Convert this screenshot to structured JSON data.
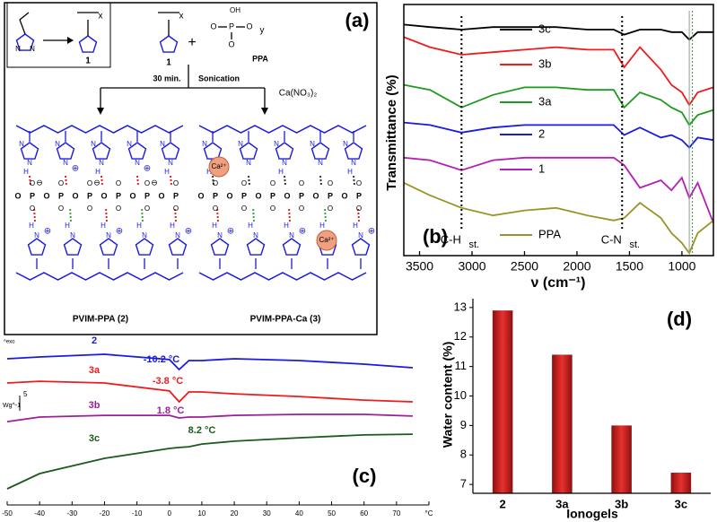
{
  "diagram": {
    "label": "(a)",
    "monomer_index": "1",
    "polymer_index": "1",
    "subscript_x": "x",
    "subscript_y": "y",
    "ppa": "PPA",
    "plus": "+",
    "step_time": "30 min.",
    "step_method": "Sonication",
    "reagent": "Ca(NO₃)₂",
    "product_2": "PVIM-PPA (2)",
    "product_3": "PVIM-PPA-Ca (3)",
    "ion": "Ca²⁺",
    "atoms": {
      "N": "N",
      "H": "H",
      "O": "O",
      "P": "P",
      "OH": "OH",
      "cation": "⊕",
      "anion": "⊖"
    }
  },
  "chart_data": [
    {
      "type": "line",
      "panel_label": "(b)",
      "x_label": "ν (cm⁻¹)",
      "y_label": "Transmittance (%)",
      "x": [
        3650,
        3400,
        3100,
        2800,
        2500,
        2200,
        1900,
        1650,
        1550,
        1400,
        1200,
        1100,
        1000,
        930,
        850,
        700
      ],
      "xlim": [
        3650,
        700
      ],
      "xticks": [
        3500,
        3000,
        2500,
        2000,
        1500,
        1000
      ],
      "ylim": [
        0,
        10
      ],
      "annotations": [
        {
          "text": "C-H",
          "sub": "st.",
          "x": 3100
        },
        {
          "text": "C-N",
          "sub": "st.",
          "x": 1570
        }
      ],
      "series": [
        {
          "name": "3c",
          "color": "#000000",
          "values": [
            9.2,
            9.1,
            9.0,
            9.1,
            9.1,
            9.1,
            9.0,
            9.0,
            8.8,
            9.0,
            9.0,
            8.9,
            8.9,
            8.6,
            8.9,
            8.9
          ]
        },
        {
          "name": "3b",
          "color": "#ee1c1c",
          "values": [
            8.7,
            8.3,
            8.0,
            8.1,
            8.2,
            8.3,
            8.2,
            8.2,
            7.5,
            8.3,
            7.4,
            6.8,
            6.5,
            6.0,
            6.5,
            6.7
          ]
        },
        {
          "name": "3a",
          "color": "#1e9a1e",
          "values": [
            6.8,
            6.6,
            5.9,
            6.4,
            6.7,
            6.7,
            6.6,
            6.6,
            5.9,
            6.5,
            6.2,
            5.9,
            5.7,
            5.2,
            5.6,
            5.8
          ]
        },
        {
          "name": "2",
          "color": "#1a1ae0",
          "values": [
            5.3,
            5.2,
            4.9,
            5.1,
            5.2,
            5.2,
            5.2,
            5.2,
            4.8,
            5.1,
            4.7,
            4.8,
            4.6,
            4.3,
            4.7,
            4.6
          ]
        },
        {
          "name": "1",
          "color": "#b51fb5",
          "values": [
            3.9,
            3.8,
            3.4,
            3.8,
            3.9,
            3.9,
            3.9,
            3.9,
            3.6,
            2.7,
            3.0,
            2.6,
            3.1,
            2.3,
            2.9,
            1.3
          ]
        },
        {
          "name": "PPA",
          "color": "#9a9427",
          "values": [
            2.9,
            2.4,
            1.9,
            1.6,
            1.8,
            1.9,
            1.6,
            1.4,
            1.5,
            2.1,
            1.5,
            0.9,
            0.5,
            0.1,
            0.9,
            1.4
          ]
        }
      ]
    },
    {
      "type": "line",
      "panel_label": "(c)",
      "y_label": "Wg^-1",
      "scale_label": "5",
      "exo_label": "^exo",
      "x": [
        -50,
        -40,
        -20,
        0,
        3,
        6,
        10,
        20,
        40,
        60,
        75
      ],
      "xlim": [
        -50,
        80
      ],
      "xticks": [
        -50,
        -40,
        -30,
        -20,
        -10,
        0,
        10,
        20,
        30,
        40,
        50,
        60,
        70,
        {
          "value": 80,
          "label": "°C"
        }
      ],
      "ylim": [
        0,
        100
      ],
      "series": [
        {
          "name": "2",
          "color": "#1a1ae0",
          "annotation": "-10.2 °C",
          "values": [
            91.4,
            92.6,
            94.3,
            90.9,
            84.6,
            90.3,
            90.3,
            91.4,
            90.3,
            88,
            85.7
          ]
        },
        {
          "name": "3a",
          "color": "#ee1c1c",
          "annotation": "-3.8 °C",
          "values": [
            76,
            77.1,
            76,
            70.9,
            64,
            70.3,
            70.3,
            69.1,
            67.4,
            65.1,
            64
          ]
        },
        {
          "name": "3b",
          "color": "#9b1f9b",
          "annotation": "1.8 °C",
          "values": [
            51.4,
            54.3,
            55.4,
            55.4,
            53.7,
            54.3,
            54.3,
            55.4,
            56,
            56,
            54.9
          ]
        },
        {
          "name": "3c",
          "color": "#1c5a1c",
          "annotation": "8.2 °C",
          "values": [
            8.6,
            18.3,
            28,
            34.3,
            34.9,
            35.4,
            37.1,
            38.9,
            41.1,
            42.9,
            43.4
          ]
        }
      ]
    },
    {
      "type": "bar",
      "panel_label": "(d)",
      "x_label": "Ionogels",
      "y_label": "Water content (%)",
      "categories": [
        "2",
        "3a",
        "3b",
        "3c"
      ],
      "values": [
        12.9,
        11.4,
        9.0,
        7.4
      ],
      "color": "#e8312f",
      "ylim": [
        6.7,
        13.3
      ],
      "yticks": [
        7,
        8,
        9,
        10,
        11,
        12,
        13
      ]
    }
  ]
}
